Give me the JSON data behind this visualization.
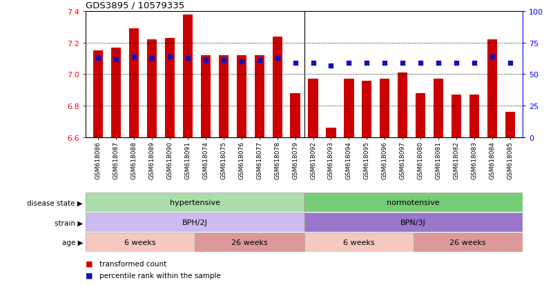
{
  "title": "GDS3895 / 10579335",
  "samples": [
    "GSM618086",
    "GSM618087",
    "GSM618088",
    "GSM618089",
    "GSM618090",
    "GSM618091",
    "GSM618074",
    "GSM618075",
    "GSM618076",
    "GSM618077",
    "GSM618078",
    "GSM618079",
    "GSM618092",
    "GSM618093",
    "GSM618094",
    "GSM618095",
    "GSM618096",
    "GSM618097",
    "GSM618080",
    "GSM618081",
    "GSM618082",
    "GSM618083",
    "GSM618084",
    "GSM618085"
  ],
  "bar_values": [
    7.15,
    7.17,
    7.29,
    7.22,
    7.23,
    7.38,
    7.12,
    7.12,
    7.12,
    7.12,
    7.24,
    6.88,
    6.97,
    6.66,
    6.97,
    6.96,
    6.97,
    7.01,
    6.88,
    6.97,
    6.87,
    6.87,
    7.22,
    6.76
  ],
  "percentile_values": [
    63,
    62,
    64,
    63,
    64,
    63,
    61,
    61,
    60,
    61,
    63,
    59,
    59,
    57,
    59,
    59,
    59,
    59,
    59,
    59,
    59,
    59,
    64,
    59
  ],
  "ylim_left": [
    6.6,
    7.4
  ],
  "ylim_right": [
    0,
    100
  ],
  "yticks_left": [
    6.6,
    6.8,
    7.0,
    7.2,
    7.4
  ],
  "yticks_right": [
    0,
    25,
    50,
    75,
    100
  ],
  "bar_color": "#cc0000",
  "dot_color": "#1111bb",
  "grid_color": "#000000",
  "disease_state_labels": [
    "hypertensive",
    "normotensive"
  ],
  "disease_state_colors": [
    "#aaddaa",
    "#77cc77"
  ],
  "strain_labels": [
    "BPH/2J",
    "BPN/3J"
  ],
  "strain_colors": [
    "#ccbbee",
    "#9977cc"
  ],
  "age_labels": [
    "6 weeks",
    "26 weeks",
    "6 weeks",
    "26 weeks"
  ],
  "age_colors_light": "#f5c8c0",
  "age_colors_dark": "#dd9999",
  "disease_state_row_label": "disease state",
  "strain_row_label": "strain",
  "age_row_label": "age",
  "legend_bar_label": "transformed count",
  "legend_dot_label": "percentile rank within the sample",
  "fig_width": 8.01,
  "fig_height": 4.14,
  "dpi": 100
}
